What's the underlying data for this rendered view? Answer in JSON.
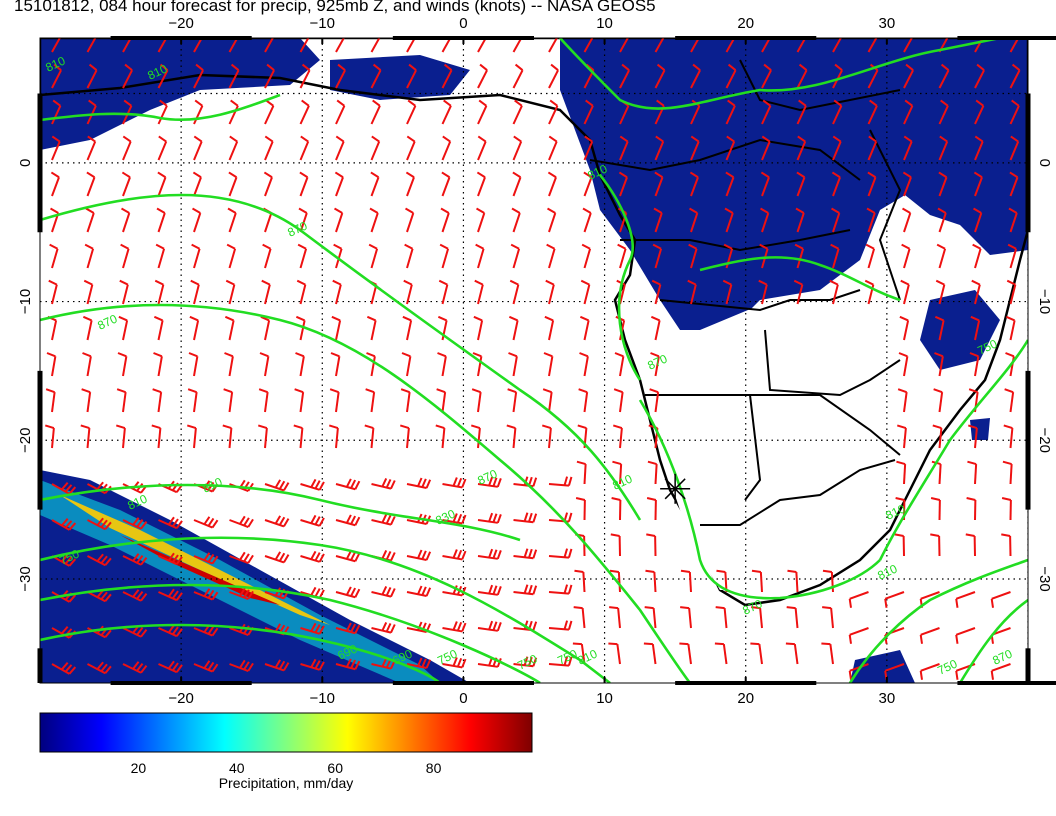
{
  "title": "15101812, 084 hour forecast for precip, 925mb Z, and winds (knots) -- NASA GEOS5",
  "axes": {
    "lon_ticks": [
      "−20",
      "−10",
      "0",
      "10",
      "20",
      "30"
    ],
    "lat_ticks": [
      "0",
      "−10",
      "−20",
      "−30"
    ],
    "lon_range": [
      -30,
      40
    ],
    "lat_range": [
      -37.5,
      9
    ]
  },
  "contours": {
    "labels": [
      "810",
      "810",
      "870",
      "870",
      "810",
      "810",
      "830",
      "870",
      "750",
      "810",
      "690",
      "750",
      "810",
      "870",
      "810",
      "750",
      "870",
      "810",
      "750",
      "810",
      "690",
      "750",
      "870",
      "750"
    ],
    "line_color": "#22dd22"
  },
  "colors": {
    "wind_barb": "#ee1111",
    "precip_field": "#0a1f8f",
    "contour": "#22dd22",
    "coastline": "#000000"
  },
  "colorbar": {
    "label": "Precipitation, mm/day",
    "ticks": [
      "20",
      "40",
      "60",
      "80"
    ],
    "tick_values": [
      20,
      40,
      60,
      80
    ],
    "range": [
      0,
      100
    ],
    "stops": [
      "#00007f",
      "#0000ff",
      "#0080ff",
      "#00ffff",
      "#80ff80",
      "#ffff00",
      "#ff8000",
      "#ff0000",
      "#7f0000"
    ]
  },
  "marker": {
    "symbol": "star",
    "lon": 15,
    "lat": -23.5
  }
}
